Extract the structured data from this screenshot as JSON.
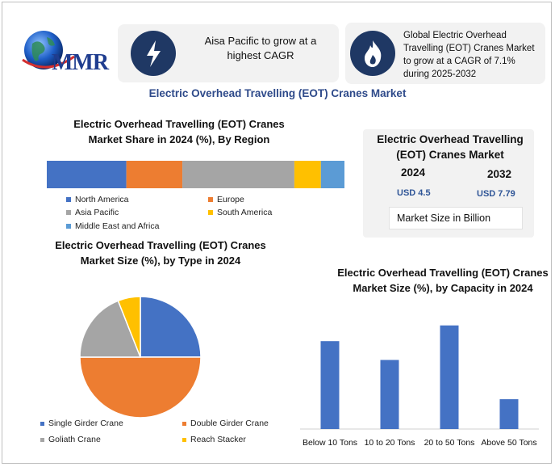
{
  "brand": {
    "logo_text": "MMR"
  },
  "highlights": [
    {
      "icon": "lightning-icon",
      "text": "Aisa Pacific to grow at a highest CAGR"
    },
    {
      "icon": "flame-icon",
      "text": "Global Electric Overhead Travelling (EOT) Cranes Market to grow at a CAGR of 7.1% during 2025-2032"
    }
  ],
  "page_title": "Electric Overhead Travelling (EOT) Cranes Market",
  "market_size": {
    "title": "Electric Overhead Travelling (EOT) Cranes Market",
    "year_a": "2024",
    "value_a": "USD 4.5",
    "year_b": "2032",
    "value_b": "USD 7.79",
    "unit_label": "Market Size in Billion"
  },
  "colors": {
    "blue": "#4472c4",
    "orange": "#ed7d31",
    "gray": "#a5a5a5",
    "yellow": "#ffc000",
    "lightblue": "#5b9bd5",
    "dark": "#1f3864"
  },
  "chart_data": [
    {
      "type": "bar",
      "orientation": "horizontal-stacked",
      "title": "Electric Overhead Travelling (EOT) Cranes Market Share in 2024 (%), By Region",
      "categories": [
        "North America",
        "Europe",
        "Asia Pacific",
        "South America",
        "Middle East and Africa"
      ],
      "values": [
        27,
        19,
        38,
        9,
        8
      ],
      "colors": [
        "#4472c4",
        "#ed7d31",
        "#a5a5a5",
        "#ffc000",
        "#5b9bd5"
      ]
    },
    {
      "type": "pie",
      "title": "Electric Overhead Travelling (EOT) Cranes Market Size (%), by Type in 2024",
      "categories": [
        "Single Girder Crane",
        "Double Girder Crane",
        "Goliath Crane",
        "Reach Stacker"
      ],
      "values": [
        25,
        50,
        19,
        6
      ],
      "colors": [
        "#4472c4",
        "#ed7d31",
        "#a5a5a5",
        "#ffc000"
      ]
    },
    {
      "type": "bar",
      "title": "Electric Overhead Travelling (EOT) Cranes Market Size (%), by Capacity in 2024",
      "categories": [
        "Below 10 Tons",
        "10 to 20 Tons",
        "20 to 50 Tons",
        "Above 50 Tons"
      ],
      "values": [
        28,
        22,
        33,
        9.5
      ],
      "ylim": [
        0,
        35
      ],
      "color": "#4472c4"
    }
  ]
}
